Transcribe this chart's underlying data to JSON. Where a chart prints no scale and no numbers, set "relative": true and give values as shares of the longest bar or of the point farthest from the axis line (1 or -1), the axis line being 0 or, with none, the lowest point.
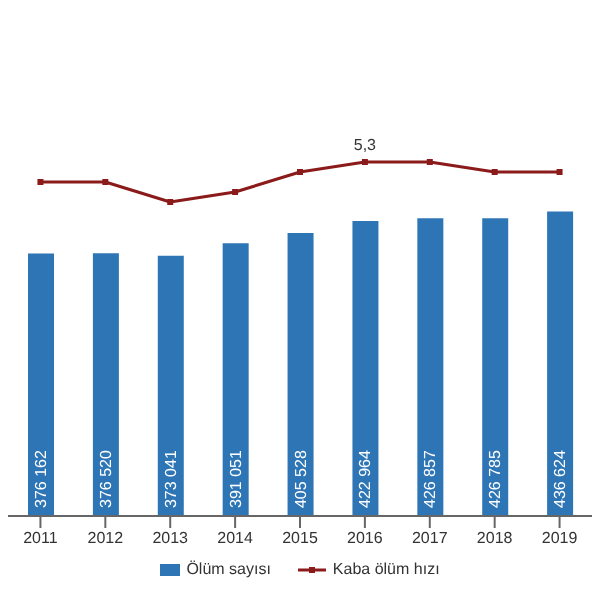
{
  "chart_data": [
    {
      "type": "bar",
      "categories": [
        "2011",
        "2012",
        "2013",
        "2014",
        "2015",
        "2016",
        "2017",
        "2018",
        "2019"
      ],
      "tick_labels": "x",
      "legend": "bottom",
      "series": [
        {
          "name": "Ölüm sayısı",
          "color": "#2e75b6",
          "values": [
            376162,
            376520,
            373041,
            391051,
            405528,
            422964,
            426857,
            426785,
            436624
          ],
          "value_labels": [
            "376 162",
            "376 520",
            "373 041",
            "391 051",
            "405 528",
            "422 964",
            "426 857",
            "426 785",
            "436 624"
          ]
        }
      ]
    },
    {
      "type": "line",
      "relative": true,
      "categories": [
        null,
        null,
        null,
        null,
        null,
        null,
        null,
        null,
        null
      ],
      "tick_labels": false,
      "legend": "bottom",
      "marker": "square",
      "annotations": [
        {
          "text": "5,3",
          "y": 1
        }
      ],
      "series": [
        {
          "name": "Kaba ölüm hızı",
          "color": "#8b1a1a",
          "values": [
            0.5,
            0.5,
            0,
            0.25,
            0.75,
            1,
            1,
            0.75,
            0.75
          ]
        }
      ]
    }
  ]
}
